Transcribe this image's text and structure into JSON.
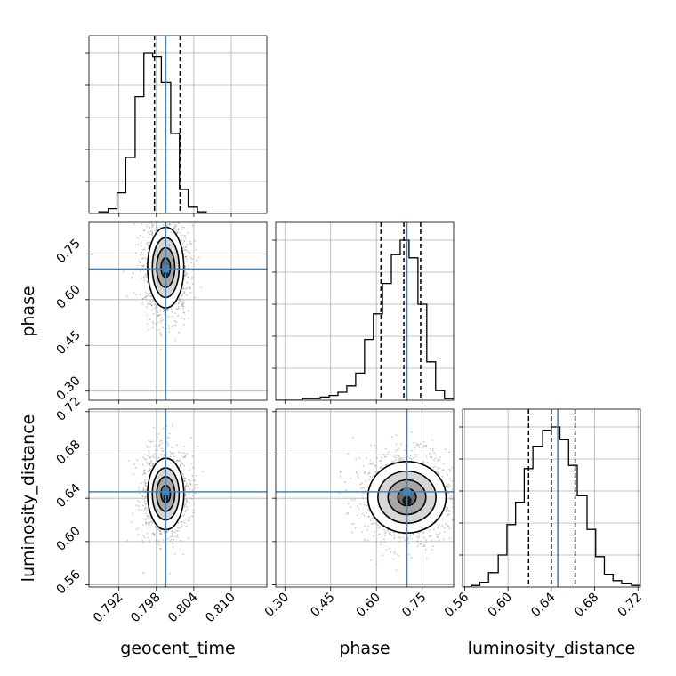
{
  "chart_data": {
    "type": "corner",
    "parameters": [
      "geocent_time",
      "phase",
      "luminosity_distance"
    ],
    "axis_labels": [
      "geocent_time",
      "phase",
      "luminosity_distance"
    ],
    "truths": [
      0.7995,
      0.7,
      0.646
    ],
    "colors": {
      "truth": "#4682b4",
      "line": "#000000",
      "grid": "#b0b0b0"
    },
    "grid": true,
    "ranges": [
      [
        0.7872,
        0.8157
      ],
      [
        0.27,
        0.853
      ],
      [
        0.558,
        0.7223
      ]
    ],
    "ticks": [
      {
        "values": [
          0.792,
          0.798,
          0.804,
          0.81
        ],
        "labels": [
          "0.792",
          "0.798",
          "0.804",
          "0.810"
        ]
      },
      {
        "values": [
          0.3,
          0.45,
          0.6,
          0.75
        ],
        "labels": [
          "0.30",
          "0.45",
          "0.60",
          "0.75"
        ]
      },
      {
        "values": [
          0.56,
          0.6,
          0.64,
          0.68,
          0.72
        ],
        "labels": [
          "0.56",
          "0.60",
          "0.64",
          "0.68",
          "0.72"
        ]
      }
    ],
    "histograms": [
      {
        "parameter": "geocent_time",
        "quantiles": [
          0.7977,
          0.7995,
          0.8018
        ],
        "bins": [
          0.7874,
          0.7888,
          0.7903,
          0.7917,
          0.7931,
          0.7946,
          0.796,
          0.7974,
          0.7988,
          0.8003,
          0.8017,
          0.8031,
          0.8046,
          0.806,
          0.8074,
          0.8089,
          0.8103,
          0.8117,
          0.8131,
          0.8146,
          0.816
        ],
        "counts": [
          0,
          1,
          3,
          13,
          35,
          73,
          100,
          98,
          82,
          50,
          15,
          4,
          1,
          0,
          0,
          0,
          0,
          0,
          0,
          0
        ]
      },
      {
        "parameter": "phase",
        "quantiles": [
          0.615,
          0.69,
          0.745
        ],
        "bins": [
          0.27,
          0.299,
          0.328,
          0.357,
          0.387,
          0.416,
          0.445,
          0.474,
          0.503,
          0.532,
          0.561,
          0.59,
          0.62,
          0.649,
          0.678,
          0.707,
          0.736,
          0.765,
          0.794,
          0.823,
          0.853
        ],
        "counts": [
          0,
          0,
          0,
          1,
          1,
          2,
          3,
          5,
          9,
          17,
          38,
          54,
          73,
          91,
          100,
          89,
          60,
          24,
          6,
          1
        ]
      },
      {
        "parameter": "luminosity_distance",
        "quantiles": [
          0.619,
          0.64,
          0.662
        ],
        "bins": [
          0.558,
          0.566,
          0.574,
          0.582,
          0.591,
          0.599,
          0.607,
          0.615,
          0.623,
          0.632,
          0.64,
          0.648,
          0.656,
          0.664,
          0.673,
          0.681,
          0.689,
          0.697,
          0.705,
          0.714,
          0.722
        ],
        "counts": [
          0,
          1,
          3,
          9,
          20,
          39,
          53,
          74,
          88,
          98,
          100,
          92,
          76,
          57,
          36,
          19,
          8,
          4,
          2,
          1
        ]
      }
    ],
    "contours": [
      {
        "x": "geocent_time",
        "y": "phase",
        "center": [
          0.7995,
          0.705
        ],
        "levels": [
          {
            "sx": 0.00075,
            "sy": 0.032
          },
          {
            "sx": 0.00145,
            "sy": 0.065
          },
          {
            "sx": 0.00215,
            "sy": 0.098
          },
          {
            "sx": 0.0029,
            "sy": 0.132
          }
        ]
      },
      {
        "x": "geocent_time",
        "y": "luminosity_distance",
        "center": [
          0.7995,
          0.644
        ],
        "levels": [
          {
            "sx": 0.00075,
            "sy": 0.008
          },
          {
            "sx": 0.00145,
            "sy": 0.016
          },
          {
            "sx": 0.00215,
            "sy": 0.024
          },
          {
            "sx": 0.0029,
            "sy": 0.033
          }
        ]
      },
      {
        "x": "phase",
        "y": "luminosity_distance",
        "center": [
          0.7,
          0.641
        ],
        "levels": [
          {
            "sx": 0.03,
            "sy": 0.008
          },
          {
            "sx": 0.062,
            "sy": 0.016
          },
          {
            "sx": 0.095,
            "sy": 0.024
          },
          {
            "sx": 0.128,
            "sy": 0.033
          }
        ]
      }
    ]
  }
}
